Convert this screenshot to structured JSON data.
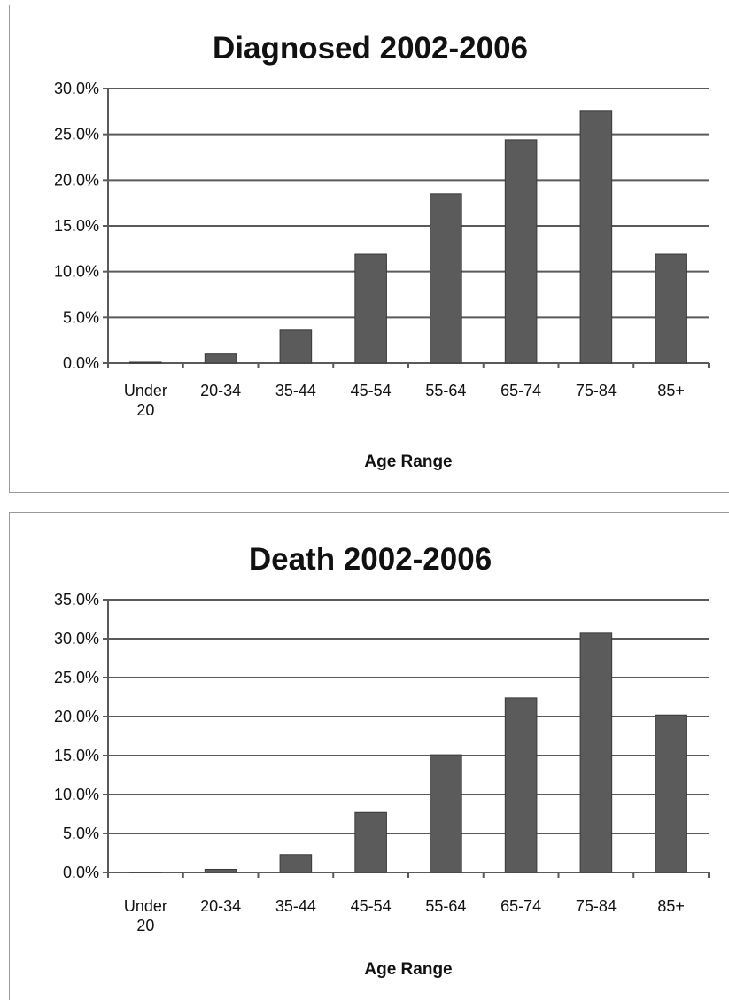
{
  "chart_data": [
    {
      "type": "bar",
      "title": "Diagnosed 2002-2006",
      "xlabel": "Age Range",
      "ylabel": "",
      "categories": [
        [
          "Under",
          "20"
        ],
        [
          "20-34"
        ],
        [
          "35-44"
        ],
        [
          "45-54"
        ],
        [
          "55-64"
        ],
        [
          "65-74"
        ],
        [
          "75-84"
        ],
        [
          "85+"
        ]
      ],
      "values": [
        0.1,
        1.0,
        3.6,
        11.9,
        18.5,
        24.4,
        27.6,
        11.9
      ],
      "ylim": [
        0,
        30
      ],
      "yticks": [
        "0.0%",
        "5.0%",
        "10.0%",
        "15.0%",
        "20.0%",
        "25.0%",
        "30.0%"
      ],
      "grid": true,
      "legend": "none"
    },
    {
      "type": "bar",
      "title": "Death 2002-2006",
      "xlabel": "Age Range",
      "ylabel": "",
      "categories": [
        [
          "Under",
          "20"
        ],
        [
          "20-34"
        ],
        [
          "35-44"
        ],
        [
          "45-54"
        ],
        [
          "55-64"
        ],
        [
          "65-74"
        ],
        [
          "75-84"
        ],
        [
          "85+"
        ]
      ],
      "values": [
        0.05,
        0.4,
        2.3,
        7.7,
        15.1,
        22.4,
        30.7,
        20.2
      ],
      "ylim": [
        0,
        35
      ],
      "yticks": [
        "0.0%",
        "5.0%",
        "10.0%",
        "15.0%",
        "20.0%",
        "25.0%",
        "30.0%",
        "35.0%"
      ],
      "grid": true,
      "legend": "none"
    }
  ],
  "colors": {
    "bar": "#5b5b5b",
    "grid": "#5a5a5a",
    "text": "#111111"
  }
}
